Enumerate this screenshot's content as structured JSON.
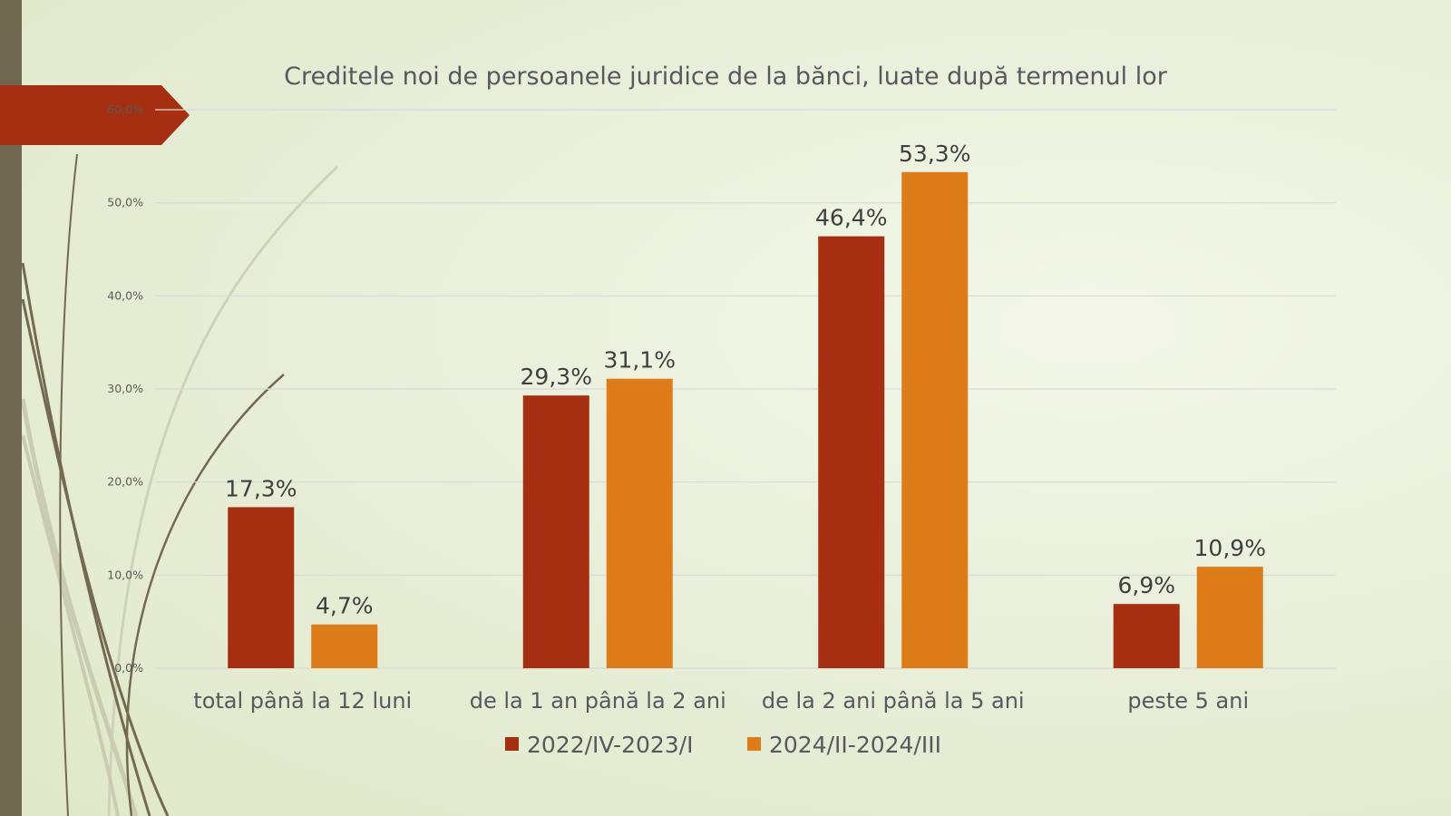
{
  "chart_data": {
    "type": "bar",
    "title": "Creditele noi de persoanele juridice de la bănci, luate după termenul lor",
    "categories": [
      "total până la 12 luni",
      "de la 1 an până la 2 ani",
      "de la 2 ani până la 5 ani",
      "peste 5 ani"
    ],
    "series": [
      {
        "name": "2022/IV-2023/I",
        "values": [
          17.3,
          29.3,
          46.4,
          6.9
        ],
        "labels": [
          "17,3%",
          "29,3%",
          "46,4%",
          "6,9%"
        ],
        "color": "#a52f10"
      },
      {
        "name": "2024/II-2024/III",
        "values": [
          4.7,
          31.1,
          53.3,
          10.9
        ],
        "labels": [
          "4,7%",
          "31,1%",
          "53,3%",
          "10,9%"
        ],
        "color": "#de7c1a"
      }
    ],
    "ylim": [
      0,
      60
    ],
    "yticks": [
      "0,0%",
      "10,0%",
      "20,0%",
      "30,0%",
      "40,0%",
      "50,0%",
      "60,0%"
    ],
    "grid": true,
    "legend_position": "bottom",
    "xlabel": "",
    "ylabel": ""
  }
}
